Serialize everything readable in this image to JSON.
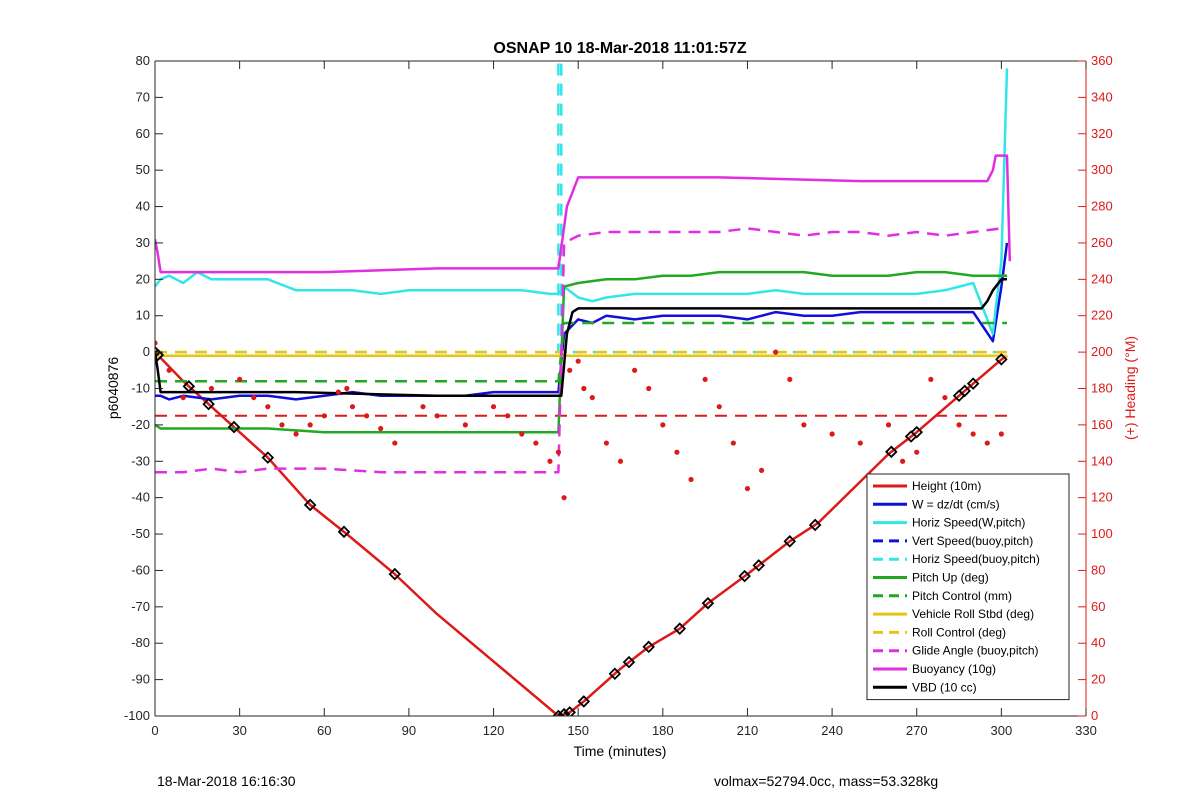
{
  "chart_data": {
    "type": "line",
    "title": "OSNAP 10 18-Mar-2018 11:01:57Z",
    "xlabel": "Time (minutes)",
    "ylabel": "p6040876",
    "ylabel_right": "(+) Heading (°M)",
    "xlim": [
      0,
      330
    ],
    "ylim": [
      -100,
      80
    ],
    "ylim_right": [
      0,
      360
    ],
    "x_ticks": [
      "0",
      "30",
      "60",
      "90",
      "120",
      "150",
      "180",
      "210",
      "240",
      "270",
      "300",
      "330"
    ],
    "y_ticks": [
      "80",
      "70",
      "60",
      "50",
      "40",
      "30",
      "20",
      "10",
      "0",
      "-10",
      "-20",
      "-30",
      "-40",
      "-50",
      "-60",
      "-70",
      "-80",
      "-90",
      "-100"
    ],
    "y_ticks_right": [
      "360",
      "340",
      "320",
      "300",
      "280",
      "260",
      "240",
      "220",
      "200",
      "180",
      "160",
      "140",
      "120",
      "100",
      "80",
      "60",
      "40",
      "20",
      "0"
    ],
    "grid": false,
    "legend_position": "bottom-right",
    "colors": {
      "red": "#dd1a1a",
      "blue": "#1010d8",
      "cyan": "#33e6e6",
      "green": "#22a822",
      "yellow": "#e8c514",
      "magenta": "#e22ee2",
      "black": "#000000"
    },
    "series": [
      {
        "name": "Height (10m)",
        "color": "red",
        "style": "solid",
        "x": [
          0,
          10,
          20,
          30,
          40,
          55,
          68,
          85,
          100,
          120,
          143,
          147,
          152,
          165,
          175,
          186,
          196,
          210,
          225,
          235,
          260,
          270,
          285,
          300,
          302
        ],
        "y": [
          0,
          -8,
          -15,
          -22,
          -29,
          -42,
          -50,
          -61,
          -72,
          -85,
          -100,
          -99,
          -96,
          -87,
          -81,
          -76,
          -69,
          -61,
          -52,
          -47,
          -28,
          -22,
          -12,
          -2,
          -1
        ]
      },
      {
        "name": "W = dz/dt (cm/s)",
        "color": "blue",
        "style": "solid",
        "x": [
          0,
          2,
          5,
          10,
          20,
          30,
          40,
          50,
          60,
          70,
          80,
          90,
          100,
          110,
          120,
          130,
          140,
          143,
          145,
          150,
          155,
          160,
          170,
          180,
          190,
          200,
          210,
          220,
          230,
          240,
          250,
          260,
          270,
          280,
          290,
          297,
          298,
          300,
          302
        ],
        "y": [
          -12,
          -12,
          -13,
          -12,
          -13,
          -12,
          -12,
          -13,
          -12,
          -11,
          -12,
          -12,
          -12,
          -12,
          -11,
          -11,
          -11,
          -11,
          5,
          9,
          8,
          10,
          9,
          10,
          10,
          10,
          9,
          11,
          10,
          10,
          11,
          11,
          11,
          11,
          11,
          3,
          8,
          18,
          30
        ]
      },
      {
        "name": "Horiz Speed(W,pitch)",
        "color": "cyan",
        "style": "solid",
        "x": [
          0,
          2,
          5,
          10,
          15,
          20,
          30,
          40,
          50,
          60,
          70,
          80,
          90,
          100,
          110,
          120,
          130,
          140,
          143,
          145,
          150,
          155,
          160,
          170,
          180,
          190,
          200,
          210,
          220,
          230,
          240,
          250,
          260,
          270,
          280,
          290,
          297,
          298,
          300,
          302
        ],
        "y": [
          18,
          20,
          21,
          19,
          22,
          20,
          20,
          20,
          17,
          17,
          17,
          16,
          17,
          17,
          17,
          17,
          17,
          16,
          16,
          18,
          15,
          14,
          15,
          16,
          16,
          16,
          16,
          16,
          17,
          16,
          16,
          16,
          16,
          16,
          17,
          19,
          5,
          12,
          25,
          78
        ]
      },
      {
        "name": "Vert Speed(buoy,pitch)",
        "color": "blue",
        "style": "dashed",
        "x": [],
        "y": []
      },
      {
        "name": "Horiz Speed(buoy,pitch)",
        "color": "cyan",
        "style": "dashed",
        "x": [
          0,
          143,
          143,
          144,
          144,
          302
        ],
        "y": [
          0,
          0,
          80,
          80,
          0,
          0
        ]
      },
      {
        "name": "Pitch Up (deg)",
        "color": "green",
        "style": "solid",
        "x": [
          0,
          2,
          5,
          20,
          40,
          60,
          80,
          100,
          120,
          140,
          143,
          145,
          150,
          160,
          170,
          180,
          190,
          200,
          210,
          220,
          230,
          240,
          250,
          260,
          270,
          280,
          290,
          300,
          302
        ],
        "y": [
          -20,
          -21,
          -21,
          -21,
          -21,
          -22,
          -22,
          -22,
          -22,
          -22,
          -22,
          18,
          19,
          20,
          20,
          21,
          21,
          22,
          22,
          22,
          22,
          21,
          21,
          21,
          22,
          22,
          21,
          21,
          21
        ]
      },
      {
        "name": "Pitch Control (mm)",
        "color": "green",
        "style": "dashed",
        "x": [
          0,
          143,
          145,
          302
        ],
        "y": [
          -8,
          -8,
          8,
          8
        ]
      },
      {
        "name": "Vehicle Roll Stbd (deg)",
        "color": "yellow",
        "style": "solid",
        "x": [
          0,
          302
        ],
        "y": [
          -1,
          -1
        ]
      },
      {
        "name": "Roll Control (deg)",
        "color": "yellow",
        "style": "dashed",
        "x": [
          0,
          302
        ],
        "y": [
          0,
          0
        ]
      },
      {
        "name": "Glide Angle (buoy,pitch)",
        "color": "magenta",
        "style": "dashed",
        "x": [
          0,
          10,
          20,
          30,
          40,
          60,
          80,
          100,
          120,
          140,
          143,
          145,
          150,
          160,
          170,
          180,
          190,
          200,
          210,
          220,
          230,
          240,
          250,
          260,
          270,
          280,
          290,
          300
        ],
        "y": [
          -33,
          -33,
          -32,
          -33,
          -32,
          -32,
          -33,
          -33,
          -33,
          -33,
          -33,
          30,
          32,
          33,
          33,
          33,
          33,
          33,
          34,
          33,
          32,
          33,
          33,
          32,
          33,
          32,
          33,
          34
        ]
      },
      {
        "name": "Buoyancy (10g)",
        "color": "magenta",
        "style": "solid",
        "x": [
          0,
          1,
          2,
          60,
          100,
          140,
          143,
          146,
          150,
          180,
          200,
          250,
          290,
          295,
          297,
          298,
          300,
          302,
          303
        ],
        "y": [
          31,
          27,
          22,
          22,
          23,
          23,
          23,
          40,
          48,
          48,
          48,
          47,
          47,
          47,
          50,
          54,
          54,
          54,
          25
        ]
      },
      {
        "name": "VBD (10 cc)",
        "color": "black",
        "style": "solid",
        "x": [
          0,
          1,
          2,
          10,
          50,
          100,
          143,
          144,
          146,
          148,
          150,
          180,
          200,
          250,
          290,
          293,
          295,
          297,
          300,
          302
        ],
        "y": [
          0,
          -5,
          -11,
          -11,
          -11,
          -12,
          -12,
          -12,
          5,
          11,
          12,
          12,
          12,
          12,
          12,
          12,
          14,
          17,
          20,
          20
        ]
      }
    ],
    "heading_series": {
      "color": "red",
      "style": "dotted",
      "axis": "right",
      "x": [
        0,
        5,
        10,
        20,
        30,
        35,
        40,
        45,
        50,
        55,
        60,
        65,
        68,
        70,
        75,
        80,
        85,
        95,
        100,
        110,
        120,
        125,
        130,
        135,
        140,
        143,
        145,
        147,
        150,
        152,
        155,
        160,
        165,
        170,
        175,
        180,
        185,
        190,
        195,
        200,
        205,
        210,
        215,
        220,
        225,
        230,
        240,
        250,
        260,
        265,
        270,
        275,
        280,
        285,
        290,
        295,
        300
      ],
      "y": [
        205,
        190,
        175,
        180,
        185,
        175,
        170,
        160,
        155,
        160,
        165,
        178,
        180,
        170,
        165,
        158,
        150,
        170,
        165,
        160,
        170,
        165,
        155,
        150,
        140,
        145,
        120,
        190,
        195,
        180,
        175,
        150,
        140,
        190,
        180,
        160,
        145,
        130,
        185,
        170,
        150,
        125,
        135,
        200,
        185,
        160,
        155,
        150,
        160,
        140,
        145,
        185,
        175,
        160,
        155,
        150,
        155
      ]
    },
    "heading_reference_right": 165,
    "markers_on_height": [
      0,
      1,
      12,
      19,
      28,
      40,
      55,
      67,
      85,
      143,
      145,
      147,
      152,
      163,
      168,
      175,
      186,
      196,
      209,
      214,
      225,
      234,
      261,
      268,
      270,
      285,
      287,
      290,
      300
    ],
    "footer_left": "18-Mar-2018 16:16:30",
    "footer_right": "volmax=52794.0cc, mass=53.328kg"
  }
}
